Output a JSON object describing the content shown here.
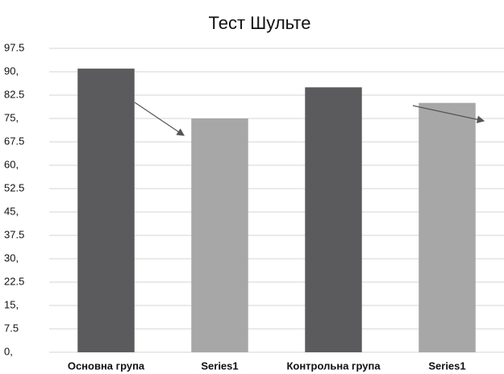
{
  "chart_data": {
    "type": "bar",
    "title": "Тест Шульте",
    "categories": [
      "Основна група",
      "Series1",
      "Контрольна група",
      "Series1"
    ],
    "values": [
      91,
      75,
      85,
      80
    ],
    "colors": [
      "#5b5b5d",
      "#a7a7a8",
      "#5b5b5d",
      "#a7a7a8"
    ],
    "ylim": [
      0,
      97.5
    ],
    "yticks": [
      {
        "value": 0,
        "label": "0,"
      },
      7.5,
      {
        "value": 15,
        "label": "15,"
      },
      22.5,
      {
        "value": 30,
        "label": "30,"
      },
      37.5,
      {
        "value": 45,
        "label": "45,"
      },
      52.5,
      {
        "value": 60,
        "label": "60,"
      },
      67.5,
      {
        "value": 75,
        "label": "75,"
      },
      82.5,
      {
        "value": 90,
        "label": "90,"
      },
      97.5
    ],
    "grid": true
  }
}
